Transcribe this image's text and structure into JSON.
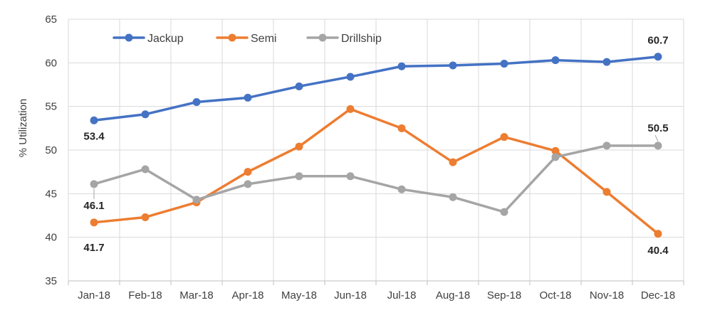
{
  "chart_data": {
    "type": "line",
    "categories": [
      "Jan-18",
      "Feb-18",
      "Mar-18",
      "Apr-18",
      "May-18",
      "Jun-18",
      "Jul-18",
      "Aug-18",
      "Sep-18",
      "Oct-18",
      "Nov-18",
      "Dec-18"
    ],
    "ylabel": "% Utilization",
    "ylim": [
      35,
      65
    ],
    "yticks": [
      35,
      40,
      45,
      50,
      55,
      60,
      65
    ],
    "grid": true,
    "legend_position": "top-left",
    "series": [
      {
        "name": "Jackup",
        "color": "#4472C4",
        "values": [
          53.4,
          54.1,
          55.5,
          56.0,
          57.3,
          58.4,
          59.6,
          59.7,
          59.9,
          60.3,
          60.1,
          60.7
        ]
      },
      {
        "name": "Semi",
        "color": "#ED7D31",
        "values": [
          41.7,
          42.3,
          44.0,
          47.5,
          50.4,
          54.7,
          52.5,
          48.6,
          51.5,
          49.9,
          45.2,
          40.4
        ]
      },
      {
        "name": "Drillship",
        "color": "#A5A5A5",
        "values": [
          46.1,
          47.8,
          44.3,
          46.1,
          47.0,
          47.0,
          45.5,
          44.6,
          42.9,
          49.2,
          50.5,
          50.5
        ]
      }
    ],
    "data_labels": [
      {
        "series": 0,
        "index": 0,
        "text": "53.4"
      },
      {
        "series": 0,
        "index": 11,
        "text": "60.7"
      },
      {
        "series": 1,
        "index": 0,
        "text": "41.7"
      },
      {
        "series": 1,
        "index": 11,
        "text": "40.4"
      },
      {
        "series": 2,
        "index": 0,
        "text": "46.1"
      },
      {
        "series": 2,
        "index": 11,
        "text": "50.5"
      }
    ]
  }
}
